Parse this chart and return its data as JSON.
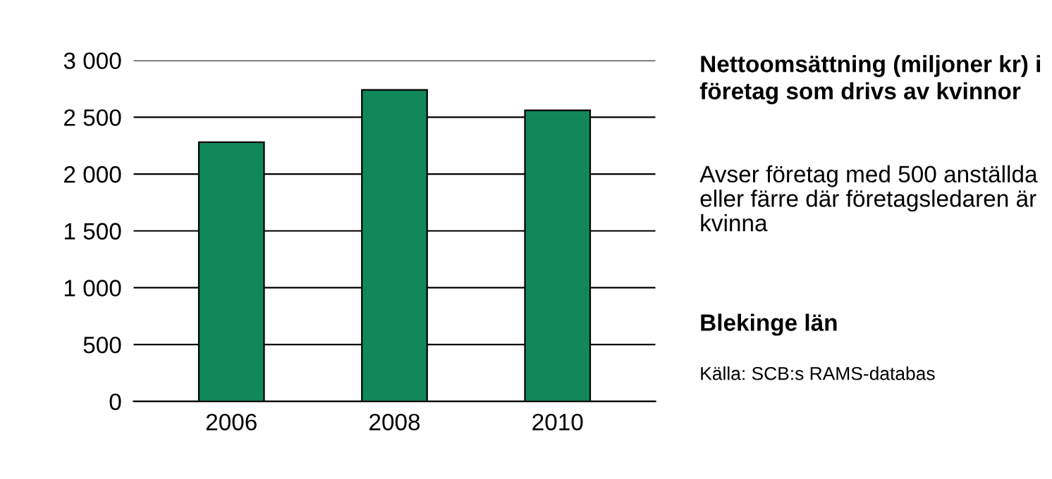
{
  "chart_data": {
    "type": "bar",
    "title": "Nettoomsättning (miljoner kr) i företag som drivs av kvinnor",
    "subtitle": "Avser företag med 500 anställda eller färre där företagsledaren är kvinna",
    "annotations": [
      "Blekinge län",
      "Källa: SCB:s RAMS-databas"
    ],
    "categories": [
      "2006",
      "2008",
      "2010"
    ],
    "values": [
      2280,
      2740,
      2560
    ],
    "color": "#10885a",
    "ylim": [
      0,
      3000
    ],
    "yticks": [
      0,
      500,
      {
        "value": 1000,
        "label": "1 000"
      },
      {
        "value": 1500,
        "label": "1 500"
      },
      {
        "value": 2000,
        "label": "2 000"
      },
      {
        "value": 2500,
        "label": "2 500"
      },
      {
        "value": 3000,
        "label": "3 000"
      }
    ],
    "grid": "y",
    "legend": false
  }
}
